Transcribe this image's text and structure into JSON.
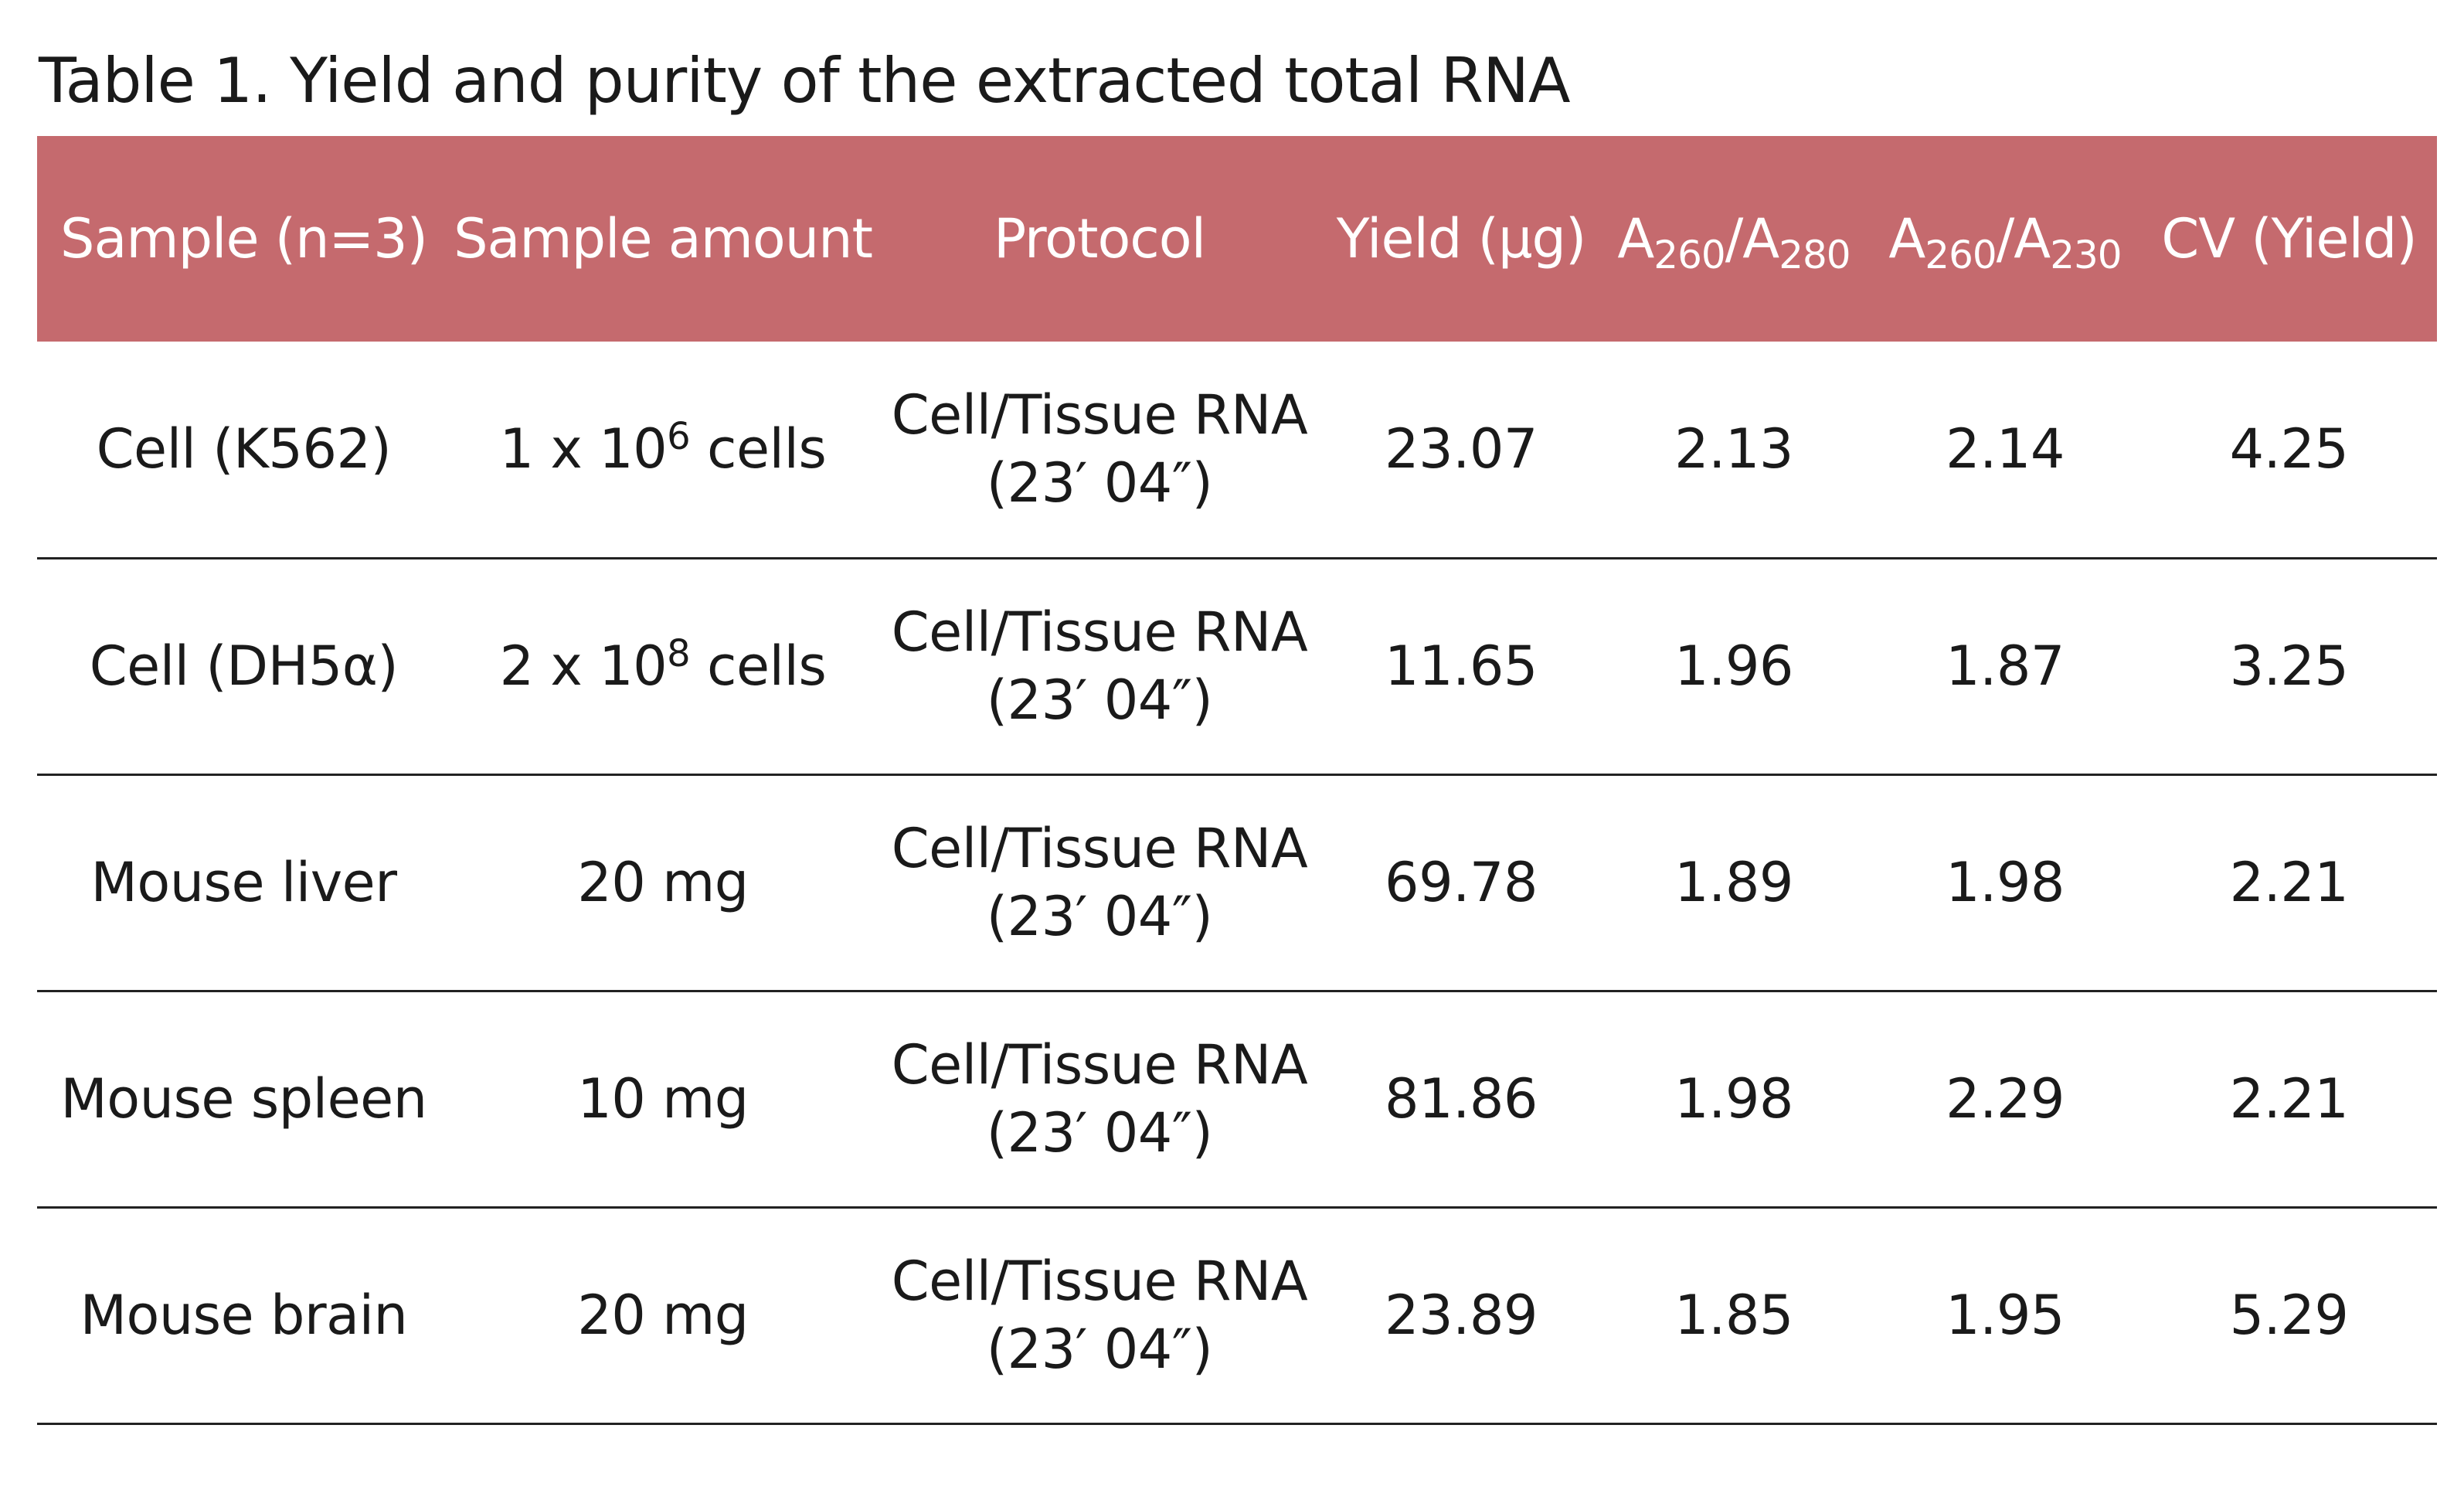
{
  "title": "Table 1. Yield and purity of the extracted total RNA",
  "header": {
    "sample": "Sample (n=3)",
    "amount": "Sample amount",
    "protocol": "Protocol",
    "yield": "Yield (μg)",
    "ratio1": {
      "a": "A",
      "s1": "260",
      "b": "/A",
      "s2": "280"
    },
    "ratio2": {
      "a": "A",
      "s1": "260",
      "b": "/A",
      "s2": "230"
    },
    "cv": "CV (Yield)"
  },
  "rows": [
    {
      "sample": "Cell (K562)",
      "amount_pre": "1 x 10",
      "amount_sup": "6",
      "amount_post": " cells",
      "protocol_line1": "Cell/Tissue RNA",
      "protocol_line2": "(23′ 04″)",
      "yield": "23.07",
      "a260_280": "2.13",
      "a260_230": "2.14",
      "cv": "4.25"
    },
    {
      "sample": "Cell (DH5α)",
      "amount_pre": "2 x 10",
      "amount_sup": "8",
      "amount_post": " cells",
      "protocol_line1": "Cell/Tissue RNA",
      "protocol_line2": "(23′ 04″)",
      "yield": "11.65",
      "a260_280": "1.96",
      "a260_230": "1.87",
      "cv": "3.25"
    },
    {
      "sample": "Mouse liver",
      "amount_pre": "20 mg",
      "amount_sup": "",
      "amount_post": "",
      "protocol_line1": "Cell/Tissue RNA",
      "protocol_line2": "(23′ 04″)",
      "yield": "69.78",
      "a260_280": "1.89",
      "a260_230": "1.98",
      "cv": "2.21"
    },
    {
      "sample": "Mouse spleen",
      "amount_pre": "10 mg",
      "amount_sup": "",
      "amount_post": "",
      "protocol_line1": "Cell/Tissue RNA",
      "protocol_line2": "(23′ 04″)",
      "yield": "81.86",
      "a260_280": "1.98",
      "a260_230": "2.29",
      "cv": "2.21"
    },
    {
      "sample": "Mouse brain",
      "amount_pre": "20 mg",
      "amount_sup": "",
      "amount_post": "",
      "protocol_line1": "Cell/Tissue RNA",
      "protocol_line2": "(23′ 04″)",
      "yield": "23.89",
      "a260_280": "1.85",
      "a260_230": "1.95",
      "cv": "5.29"
    }
  ],
  "colors": {
    "header_bg": "#c56a6e",
    "header_text": "#ffffff",
    "rule": "#222222"
  }
}
